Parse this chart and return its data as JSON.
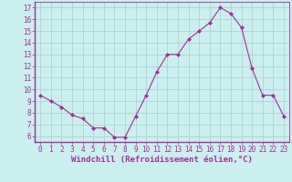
{
  "x": [
    0,
    1,
    2,
    3,
    4,
    5,
    6,
    7,
    8,
    9,
    10,
    11,
    12,
    13,
    14,
    15,
    16,
    17,
    18,
    19,
    20,
    21,
    22,
    23
  ],
  "y": [
    9.5,
    9.0,
    8.5,
    7.8,
    7.5,
    6.7,
    6.7,
    5.9,
    5.9,
    7.7,
    9.5,
    11.5,
    13.0,
    13.0,
    14.3,
    15.0,
    15.7,
    17.0,
    16.5,
    15.3,
    11.8,
    9.5,
    9.5,
    7.7
  ],
  "line_color": "#993399",
  "marker": "D",
  "markersize": 2,
  "linewidth": 0.8,
  "bg_color": "#cceeee",
  "grid_color": "#aacccc",
  "xlabel": "Windchill (Refroidissement éolien,°C)",
  "xlabel_fontsize": 6.5,
  "ylabel_ticks": [
    6,
    7,
    8,
    9,
    10,
    11,
    12,
    13,
    14,
    15,
    16,
    17
  ],
  "xlim": [
    -0.5,
    23.5
  ],
  "ylim": [
    5.5,
    17.5
  ],
  "tick_color": "#993399",
  "tick_fontsize": 5.5,
  "xlabel_color": "#993399",
  "xlabel_fontweight": "bold"
}
